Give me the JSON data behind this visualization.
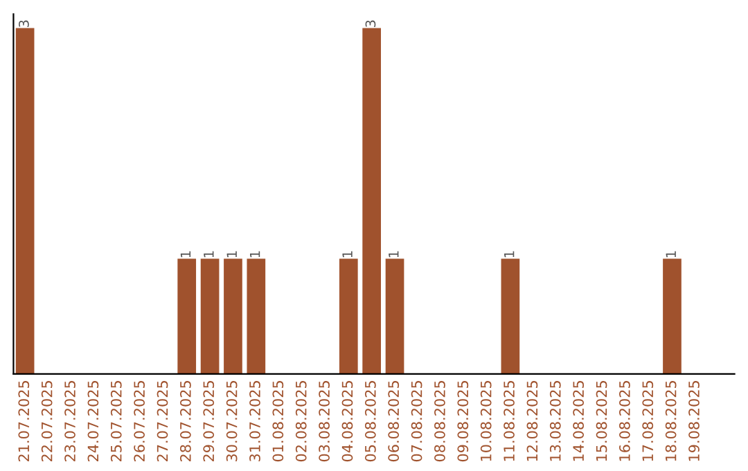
{
  "chart_data": {
    "type": "bar",
    "categories": [
      "21.07.2025",
      "22.07.2025",
      "23.07.2025",
      "24.07.2025",
      "25.07.2025",
      "26.07.2025",
      "27.07.2025",
      "28.07.2025",
      "29.07.2025",
      "30.07.2025",
      "31.07.2025",
      "01.08.2025",
      "02.08.2025",
      "03.08.2025",
      "04.08.2025",
      "05.08.2025",
      "06.08.2025",
      "07.08.2025",
      "08.08.2025",
      "09.08.2025",
      "10.08.2025",
      "11.08.2025",
      "12.08.2025",
      "13.08.2025",
      "14.08.2025",
      "15.08.2025",
      "16.08.2025",
      "17.08.2025",
      "18.08.2025",
      "19.08.2025"
    ],
    "values": [
      3,
      0,
      0,
      0,
      0,
      0,
      0,
      1,
      1,
      1,
      1,
      0,
      0,
      0,
      1,
      3,
      1,
      0,
      0,
      0,
      0,
      1,
      0,
      0,
      0,
      0,
      0,
      0,
      1,
      0
    ],
    "color": "#a0522d",
    "value_labels": [
      "3",
      null,
      null,
      null,
      null,
      null,
      null,
      "1",
      "1",
      "1",
      "1",
      null,
      null,
      null,
      "1",
      "3",
      "1",
      null,
      null,
      null,
      null,
      "1",
      null,
      null,
      null,
      null,
      null,
      null,
      "1",
      null
    ],
    "grid": false,
    "legend": false
  }
}
